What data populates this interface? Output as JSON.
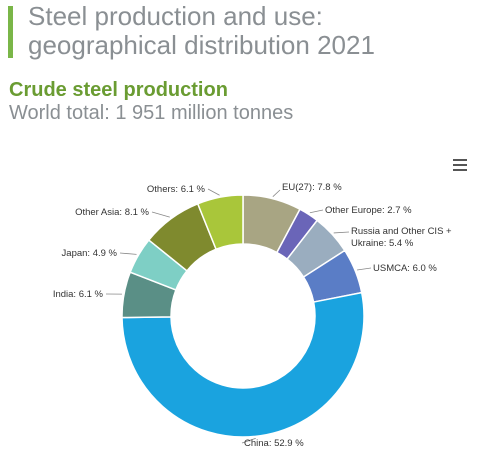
{
  "header": {
    "title": "Steel production and use: geographical distribution 2021",
    "subtitle": "Crude steel production",
    "caption": "World total: 1 951 million tonnes"
  },
  "colors": {
    "accent": "#7ab648",
    "subtitle": "#6a9c32",
    "title": "#8a8f93"
  },
  "menu": {
    "icon": "hamburger-icon"
  },
  "chart_data": {
    "type": "pie",
    "donut": true,
    "slices": [
      {
        "name": "EU(27)",
        "value": 7.8,
        "label": "EU(27): 7.8 %",
        "color": "#a8a583"
      },
      {
        "name": "Other Europe",
        "value": 2.7,
        "label": "Other Europe: 2.7 %",
        "color": "#6a65b8"
      },
      {
        "name": "Russia and Other CIS + Ukraine",
        "value": 5.4,
        "label_lines": [
          "Russia and Other CIS +",
          "Ukraine: 5.4 %"
        ],
        "color": "#9aadbf"
      },
      {
        "name": "USMCA",
        "value": 6.0,
        "label": "USMCA: 6.0 %",
        "color": "#5a7dc6"
      },
      {
        "name": "China",
        "value": 52.9,
        "label": "China: 52.9 %",
        "color": "#1aa3df"
      },
      {
        "name": "India",
        "value": 6.1,
        "label": "India: 6.1 %",
        "color": "#5a8f86"
      },
      {
        "name": "Japan",
        "value": 4.9,
        "label": "Japan: 4.9 %",
        "color": "#7ecfc5"
      },
      {
        "name": "Other Asia",
        "value": 8.1,
        "label": "Other Asia: 8.1 %",
        "color": "#7f8a2e"
      },
      {
        "name": "Others",
        "value": 6.1,
        "label": "Others: 6.1 %",
        "color": "#a9c63a"
      }
    ]
  }
}
